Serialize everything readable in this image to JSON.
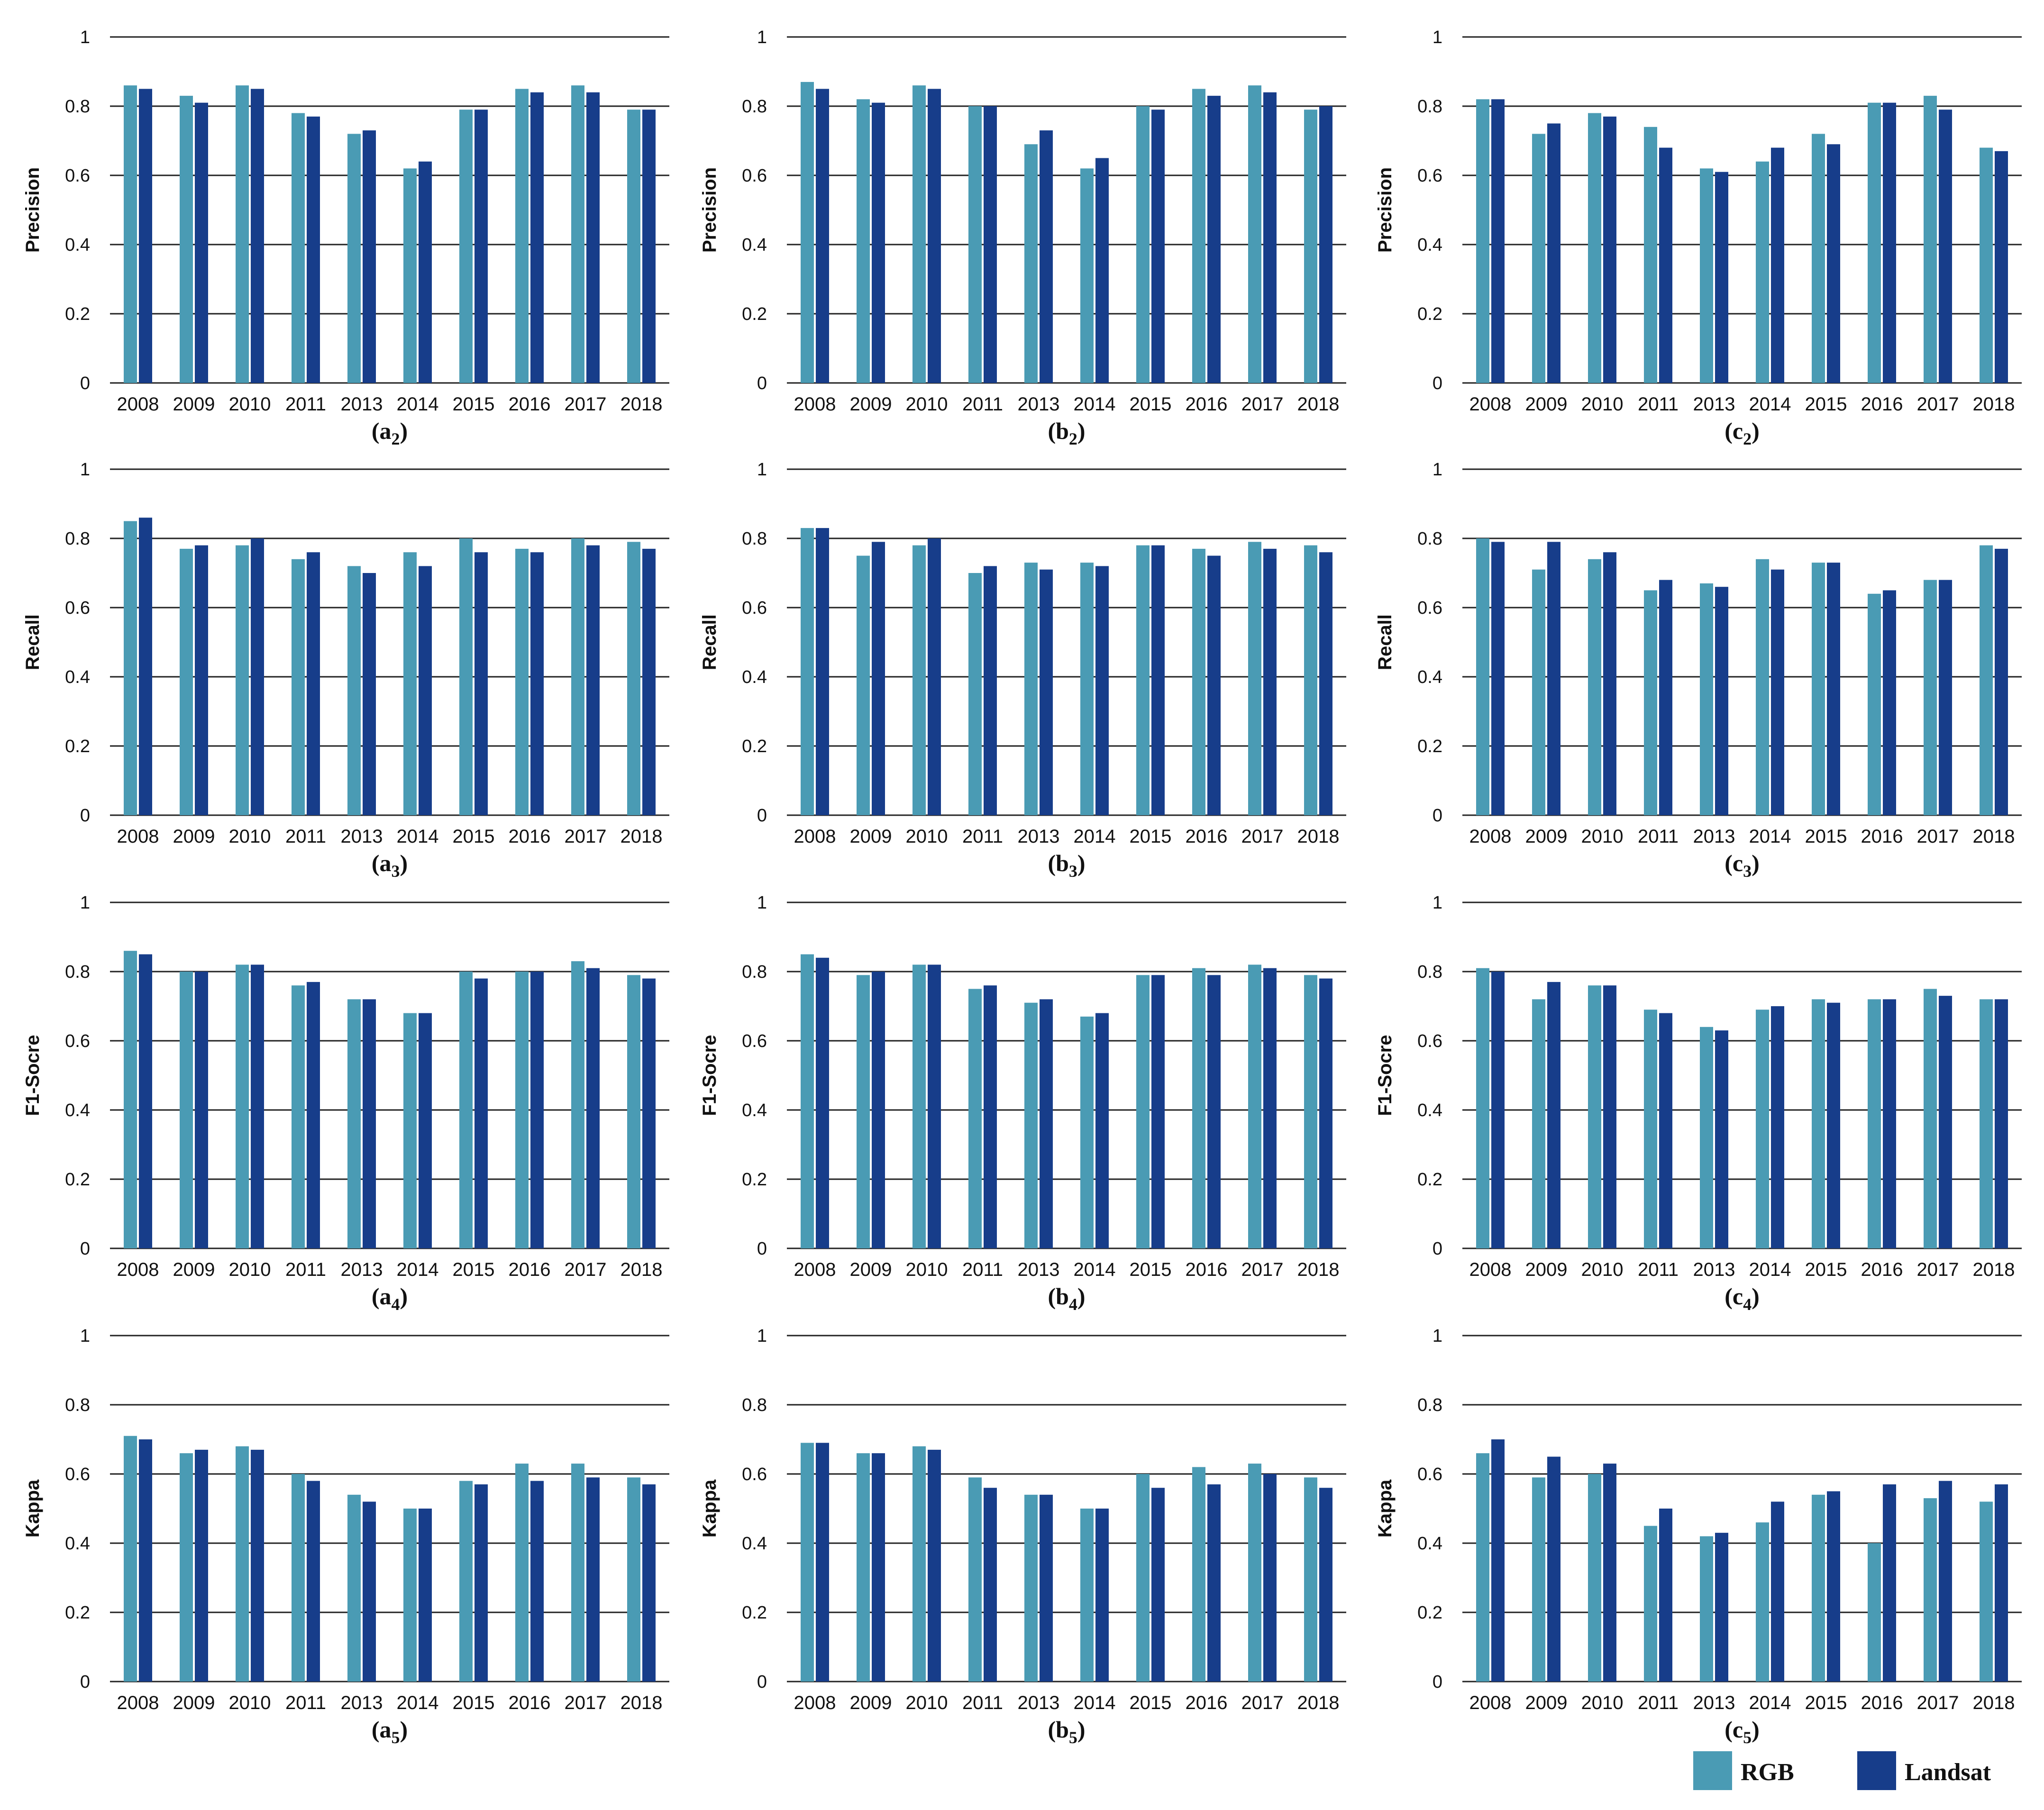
{
  "colors": {
    "rgb": "#4a9bb4",
    "landsat": "#173d8a",
    "grid": "#222222"
  },
  "legend": {
    "items": [
      "RGB",
      "Landsat"
    ]
  },
  "chart_data": [
    {
      "id": "a2",
      "type": "bar",
      "label": "a",
      "sub": "2",
      "ylabel": "Precision",
      "ylim": [
        0,
        1
      ],
      "yticks": [
        "0",
        "0.2",
        "0.4",
        "0.6",
        "0.8",
        "1"
      ],
      "categories": [
        "2008",
        "2009",
        "2010",
        "2011",
        "2013",
        "2014",
        "2015",
        "2016",
        "2017",
        "2018"
      ],
      "series": [
        {
          "name": "RGB",
          "values": [
            0.86,
            0.83,
            0.86,
            0.78,
            0.72,
            0.62,
            0.79,
            0.85,
            0.86,
            0.79
          ]
        },
        {
          "name": "Landsat",
          "values": [
            0.85,
            0.81,
            0.85,
            0.77,
            0.73,
            0.64,
            0.79,
            0.84,
            0.84,
            0.79
          ]
        }
      ]
    },
    {
      "id": "b2",
      "type": "bar",
      "label": "b",
      "sub": "2",
      "ylabel": "Precision",
      "ylim": [
        0,
        1
      ],
      "yticks": [
        "0",
        "0.2",
        "0.4",
        "0.6",
        "0.8",
        "1"
      ],
      "categories": [
        "2008",
        "2009",
        "2010",
        "2011",
        "2013",
        "2014",
        "2015",
        "2016",
        "2017",
        "2018"
      ],
      "series": [
        {
          "name": "RGB",
          "values": [
            0.87,
            0.82,
            0.86,
            0.8,
            0.69,
            0.62,
            0.8,
            0.85,
            0.86,
            0.79
          ]
        },
        {
          "name": "Landsat",
          "values": [
            0.85,
            0.81,
            0.85,
            0.8,
            0.73,
            0.65,
            0.79,
            0.83,
            0.84,
            0.8
          ]
        }
      ]
    },
    {
      "id": "c2",
      "type": "bar",
      "label": "c",
      "sub": "2",
      "ylabel": "Precision",
      "ylim": [
        0,
        1
      ],
      "yticks": [
        "0",
        "0.2",
        "0.4",
        "0.6",
        "0.8",
        "1"
      ],
      "categories": [
        "2008",
        "2009",
        "2010",
        "2011",
        "2013",
        "2014",
        "2015",
        "2016",
        "2017",
        "2018"
      ],
      "series": [
        {
          "name": "RGB",
          "values": [
            0.82,
            0.72,
            0.78,
            0.74,
            0.62,
            0.64,
            0.72,
            0.81,
            0.83,
            0.68
          ]
        },
        {
          "name": "Landsat",
          "values": [
            0.82,
            0.75,
            0.77,
            0.68,
            0.61,
            0.68,
            0.69,
            0.81,
            0.79,
            0.67
          ]
        }
      ]
    },
    {
      "id": "a3",
      "type": "bar",
      "label": "a",
      "sub": "3",
      "ylabel": "Recall",
      "ylim": [
        0,
        1
      ],
      "yticks": [
        "0",
        "0.2",
        "0.4",
        "0.6",
        "0.8",
        "1"
      ],
      "categories": [
        "2008",
        "2009",
        "2010",
        "2011",
        "2013",
        "2014",
        "2015",
        "2016",
        "2017",
        "2018"
      ],
      "series": [
        {
          "name": "RGB",
          "values": [
            0.85,
            0.77,
            0.78,
            0.74,
            0.72,
            0.76,
            0.8,
            0.77,
            0.8,
            0.79
          ]
        },
        {
          "name": "Landsat",
          "values": [
            0.86,
            0.78,
            0.8,
            0.76,
            0.7,
            0.72,
            0.76,
            0.76,
            0.78,
            0.77
          ]
        }
      ]
    },
    {
      "id": "b3",
      "type": "bar",
      "label": "b",
      "sub": "3",
      "ylabel": "Recall",
      "ylim": [
        0,
        1
      ],
      "yticks": [
        "0",
        "0.2",
        "0.4",
        "0.6",
        "0.8",
        "1"
      ],
      "categories": [
        "2008",
        "2009",
        "2010",
        "2011",
        "2013",
        "2014",
        "2015",
        "2016",
        "2017",
        "2018"
      ],
      "series": [
        {
          "name": "RGB",
          "values": [
            0.83,
            0.75,
            0.78,
            0.7,
            0.73,
            0.73,
            0.78,
            0.77,
            0.79,
            0.78
          ]
        },
        {
          "name": "Landsat",
          "values": [
            0.83,
            0.79,
            0.8,
            0.72,
            0.71,
            0.72,
            0.78,
            0.75,
            0.77,
            0.76
          ]
        }
      ]
    },
    {
      "id": "c3",
      "type": "bar",
      "label": "c",
      "sub": "3",
      "ylabel": "Recall",
      "ylim": [
        0,
        1
      ],
      "yticks": [
        "0",
        "0.2",
        "0.4",
        "0.6",
        "0.8",
        "1"
      ],
      "categories": [
        "2008",
        "2009",
        "2010",
        "2011",
        "2013",
        "2014",
        "2015",
        "2016",
        "2017",
        "2018"
      ],
      "series": [
        {
          "name": "RGB",
          "values": [
            0.8,
            0.71,
            0.74,
            0.65,
            0.67,
            0.74,
            0.73,
            0.64,
            0.68,
            0.78
          ]
        },
        {
          "name": "Landsat",
          "values": [
            0.79,
            0.79,
            0.76,
            0.68,
            0.66,
            0.71,
            0.73,
            0.65,
            0.68,
            0.77
          ]
        }
      ]
    },
    {
      "id": "a4",
      "type": "bar",
      "label": "a",
      "sub": "4",
      "ylabel": "F1-Socre",
      "ylim": [
        0,
        1
      ],
      "yticks": [
        "0",
        "0.2",
        "0.4",
        "0.6",
        "0.8",
        "1"
      ],
      "categories": [
        "2008",
        "2009",
        "2010",
        "2011",
        "2013",
        "2014",
        "2015",
        "2016",
        "2017",
        "2018"
      ],
      "series": [
        {
          "name": "RGB",
          "values": [
            0.86,
            0.8,
            0.82,
            0.76,
            0.72,
            0.68,
            0.8,
            0.8,
            0.83,
            0.79
          ]
        },
        {
          "name": "Landsat",
          "values": [
            0.85,
            0.8,
            0.82,
            0.77,
            0.72,
            0.68,
            0.78,
            0.8,
            0.81,
            0.78
          ]
        }
      ]
    },
    {
      "id": "b4",
      "type": "bar",
      "label": "b",
      "sub": "4",
      "ylabel": "F1-Socre",
      "ylim": [
        0,
        1
      ],
      "yticks": [
        "0",
        "0.2",
        "0.4",
        "0.6",
        "0.8",
        "1"
      ],
      "categories": [
        "2008",
        "2009",
        "2010",
        "2011",
        "2013",
        "2014",
        "2015",
        "2016",
        "2017",
        "2018"
      ],
      "series": [
        {
          "name": "RGB",
          "values": [
            0.85,
            0.79,
            0.82,
            0.75,
            0.71,
            0.67,
            0.79,
            0.81,
            0.82,
            0.79
          ]
        },
        {
          "name": "Landsat",
          "values": [
            0.84,
            0.8,
            0.82,
            0.76,
            0.72,
            0.68,
            0.79,
            0.79,
            0.81,
            0.78
          ]
        }
      ]
    },
    {
      "id": "c4",
      "type": "bar",
      "label": "c",
      "sub": "4",
      "ylabel": "F1-Socre",
      "ylim": [
        0,
        1
      ],
      "yticks": [
        "0",
        "0.2",
        "0.4",
        "0.6",
        "0.8",
        "1"
      ],
      "categories": [
        "2008",
        "2009",
        "2010",
        "2011",
        "2013",
        "2014",
        "2015",
        "2016",
        "2017",
        "2018"
      ],
      "series": [
        {
          "name": "RGB",
          "values": [
            0.81,
            0.72,
            0.76,
            0.69,
            0.64,
            0.69,
            0.72,
            0.72,
            0.75,
            0.72
          ]
        },
        {
          "name": "Landsat",
          "values": [
            0.8,
            0.77,
            0.76,
            0.68,
            0.63,
            0.7,
            0.71,
            0.72,
            0.73,
            0.72
          ]
        }
      ]
    },
    {
      "id": "a5",
      "type": "bar",
      "label": "a",
      "sub": "5",
      "ylabel": "Kappa",
      "ylim": [
        0,
        1
      ],
      "yticks": [
        "0",
        "0.2",
        "0.4",
        "0.6",
        "0.8",
        "1"
      ],
      "categories": [
        "2008",
        "2009",
        "2010",
        "2011",
        "2013",
        "2014",
        "2015",
        "2016",
        "2017",
        "2018"
      ],
      "series": [
        {
          "name": "RGB",
          "values": [
            0.71,
            0.66,
            0.68,
            0.6,
            0.54,
            0.5,
            0.58,
            0.63,
            0.63,
            0.59
          ]
        },
        {
          "name": "Landsat",
          "values": [
            0.7,
            0.67,
            0.67,
            0.58,
            0.52,
            0.5,
            0.57,
            0.58,
            0.59,
            0.57
          ]
        }
      ]
    },
    {
      "id": "b5",
      "type": "bar",
      "label": "b",
      "sub": "5",
      "ylabel": "Kappa",
      "ylim": [
        0,
        1
      ],
      "yticks": [
        "0",
        "0.2",
        "0.4",
        "0.6",
        "0.8",
        "1"
      ],
      "categories": [
        "2008",
        "2009",
        "2010",
        "2011",
        "2013",
        "2014",
        "2015",
        "2016",
        "2017",
        "2018"
      ],
      "series": [
        {
          "name": "RGB",
          "values": [
            0.69,
            0.66,
            0.68,
            0.59,
            0.54,
            0.5,
            0.6,
            0.62,
            0.63,
            0.59
          ]
        },
        {
          "name": "Landsat",
          "values": [
            0.69,
            0.66,
            0.67,
            0.56,
            0.54,
            0.5,
            0.56,
            0.57,
            0.6,
            0.56
          ]
        }
      ]
    },
    {
      "id": "c5",
      "type": "bar",
      "label": "c",
      "sub": "5",
      "ylabel": "Kappa",
      "ylim": [
        0,
        1
      ],
      "yticks": [
        "0",
        "0.2",
        "0.4",
        "0.6",
        "0.8",
        "1"
      ],
      "categories": [
        "2008",
        "2009",
        "2010",
        "2011",
        "2013",
        "2014",
        "2015",
        "2016",
        "2017",
        "2018"
      ],
      "series": [
        {
          "name": "RGB",
          "values": [
            0.66,
            0.59,
            0.6,
            0.45,
            0.42,
            0.46,
            0.54,
            0.4,
            0.53,
            0.52
          ]
        },
        {
          "name": "Landsat",
          "values": [
            0.7,
            0.65,
            0.63,
            0.5,
            0.43,
            0.52,
            0.55,
            0.57,
            0.58,
            0.57
          ]
        }
      ]
    }
  ]
}
